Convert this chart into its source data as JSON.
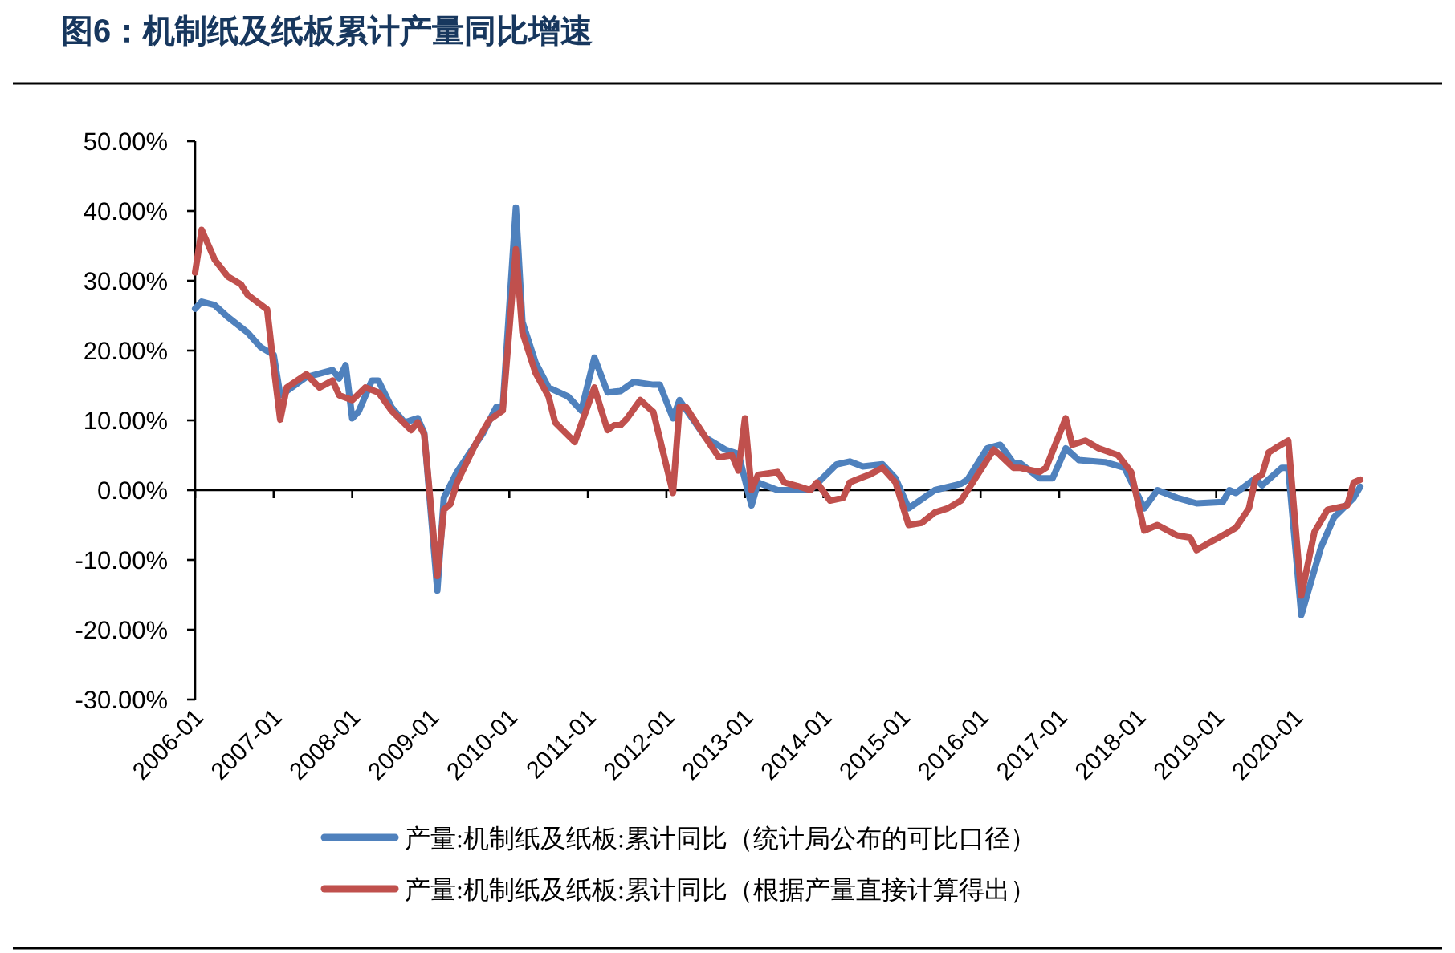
{
  "chart_data": {
    "type": "line",
    "title": "图6：机制纸及纸板累计产量同比增速",
    "xlim": [
      "2006-01",
      "2020-11"
    ],
    "xticks": [
      "2006-01",
      "2007-01",
      "2008-01",
      "2009-01",
      "2010-01",
      "2011-01",
      "2012-01",
      "2013-01",
      "2014-01",
      "2015-01",
      "2016-01",
      "2017-01",
      "2018-01",
      "2019-01",
      "2020-01"
    ],
    "ylim": [
      -30,
      50
    ],
    "yticks": [
      {
        "value": 50,
        "label": "50.00%"
      },
      {
        "value": 40,
        "label": "40.00%"
      },
      {
        "value": 30,
        "label": "30.00%"
      },
      {
        "value": 20,
        "label": "20.00%"
      },
      {
        "value": 10,
        "label": "10.00%"
      },
      {
        "value": 0,
        "label": "0.00%"
      },
      {
        "value": -10,
        "label": "-10.00%"
      },
      {
        "value": -20,
        "label": "-20.00%"
      },
      {
        "value": -30,
        "label": "-30.00%"
      }
    ],
    "legend": "bottom",
    "marker": "none",
    "line_style": "solid",
    "series": [
      {
        "name": "产量:机制纸及纸板:累计同比（统计局公布的可比口径）",
        "color": "#4f81bd",
        "x": [
          "2006-01",
          "2006-02",
          "2006-04",
          "2006-06",
          "2006-09",
          "2006-11",
          "2007-01",
          "2007-02",
          "2007-03",
          "2007-06",
          "2007-10",
          "2007-11",
          "2007-12",
          "2008-01",
          "2008-02",
          "2008-04",
          "2008-05",
          "2008-07",
          "2008-09",
          "2008-11",
          "2008-12",
          "2009-02",
          "2009-03",
          "2009-05",
          "2009-07",
          "2009-09",
          "2009-11",
          "2009-12",
          "2010-02",
          "2010-03",
          "2010-05",
          "2010-07",
          "2010-10",
          "2010-12",
          "2011-02",
          "2011-04",
          "2011-06",
          "2011-08",
          "2011-11",
          "2011-12",
          "2012-02",
          "2012-03",
          "2012-07",
          "2012-10",
          "2012-12",
          "2013-02",
          "2013-03",
          "2013-06",
          "2013-11",
          "2014-03",
          "2014-05",
          "2014-07",
          "2014-10",
          "2014-12",
          "2015-02",
          "2015-06",
          "2015-10",
          "2015-11",
          "2016-02",
          "2016-04",
          "2016-06",
          "2016-07",
          "2016-10",
          "2016-12",
          "2017-02",
          "2017-04",
          "2017-08",
          "2017-11",
          "2018-02",
          "2018-04",
          "2018-07",
          "2018-10",
          "2019-02",
          "2019-03",
          "2019-04",
          "2019-07",
          "2019-08",
          "2019-11",
          "2019-12",
          "2020-02",
          "2020-05",
          "2020-07",
          "2020-10",
          "2020-11"
        ],
        "values": [
          26.0,
          27.0,
          26.5,
          24.8,
          22.6,
          20.5,
          19.4,
          13.6,
          14.2,
          16.2,
          17.2,
          16.0,
          17.9,
          10.3,
          11.3,
          15.7,
          15.7,
          11.9,
          9.7,
          10.3,
          8.2,
          -14.4,
          -1.1,
          2.6,
          5.4,
          8.2,
          11.9,
          11.9,
          40.5,
          24.1,
          18.3,
          14.7,
          13.4,
          11.4,
          19.0,
          14.0,
          14.2,
          15.5,
          15.1,
          15.1,
          10.3,
          12.9,
          7.5,
          5.8,
          5.2,
          -2.2,
          1.1,
          0.0,
          0.0,
          3.7,
          4.1,
          3.4,
          3.7,
          1.7,
          -2.6,
          0.0,
          0.9,
          1.5,
          6.0,
          6.5,
          3.9,
          3.9,
          1.7,
          1.7,
          6.0,
          4.3,
          4.0,
          3.2,
          -2.6,
          0.0,
          -1.1,
          -1.9,
          -1.7,
          0.0,
          -0.4,
          1.7,
          0.7,
          3.2,
          3.2,
          -17.9,
          -8.2,
          -3.9,
          -1.1,
          0.5
        ]
      },
      {
        "name": "产量:机制纸及纸板:累计同比（根据产量直接计算得出）",
        "color": "#c0504d",
        "x": [
          "2006-01",
          "2006-02",
          "2006-04",
          "2006-06",
          "2006-08",
          "2006-09",
          "2006-12",
          "2007-01",
          "2007-02",
          "2007-03",
          "2007-06",
          "2007-08",
          "2007-10",
          "2007-11",
          "2008-01",
          "2008-03",
          "2008-05",
          "2008-07",
          "2008-10",
          "2008-11",
          "2008-12",
          "2009-02",
          "2009-03",
          "2009-04",
          "2009-05",
          "2009-08",
          "2009-10",
          "2009-12",
          "2010-02",
          "2010-03",
          "2010-05",
          "2010-07",
          "2010-08",
          "2010-11",
          "2011-02",
          "2011-04",
          "2011-05",
          "2011-06",
          "2011-07",
          "2011-09",
          "2011-11",
          "2012-02",
          "2012-03",
          "2012-04",
          "2012-07",
          "2012-09",
          "2012-11",
          "2012-12",
          "2013-01",
          "2013-02",
          "2013-03",
          "2013-06",
          "2013-07",
          "2013-09",
          "2013-11",
          "2013-12",
          "2014-02",
          "2014-04",
          "2014-05",
          "2014-06",
          "2014-08",
          "2014-10",
          "2014-12",
          "2015-02",
          "2015-04",
          "2015-06",
          "2015-08",
          "2015-10",
          "2016-03",
          "2016-04",
          "2016-06",
          "2016-07",
          "2016-10",
          "2016-11",
          "2017-02",
          "2017-03",
          "2017-05",
          "2017-07",
          "2017-10",
          "2017-12",
          "2018-02",
          "2018-04",
          "2018-07",
          "2018-09",
          "2018-10",
          "2018-12",
          "2019-02",
          "2019-04",
          "2019-06",
          "2019-07",
          "2019-08",
          "2019-09",
          "2019-10",
          "2019-12",
          "2020-02",
          "2020-04",
          "2020-06",
          "2020-09",
          "2020-10",
          "2020-11"
        ],
        "values": [
          31.2,
          37.3,
          33.0,
          30.6,
          29.5,
          28.0,
          25.9,
          17.7,
          10.1,
          14.7,
          16.6,
          14.7,
          15.7,
          13.6,
          12.9,
          14.7,
          14.0,
          11.4,
          8.6,
          9.7,
          8.0,
          -12.3,
          -2.8,
          -2.0,
          1.1,
          6.9,
          10.1,
          11.4,
          34.5,
          22.6,
          16.8,
          13.4,
          9.7,
          6.9,
          14.7,
          8.6,
          9.3,
          9.3,
          10.3,
          12.9,
          11.2,
          -0.4,
          11.9,
          11.9,
          7.5,
          4.7,
          5.0,
          2.8,
          10.3,
          0.0,
          2.2,
          2.6,
          1.1,
          0.6,
          0.0,
          1.1,
          -1.5,
          -1.1,
          1.1,
          1.5,
          2.2,
          3.2,
          1.1,
          -5.0,
          -4.7,
          -3.2,
          -2.6,
          -1.5,
          5.8,
          5.0,
          3.2,
          3.2,
          2.6,
          3.2,
          10.3,
          6.5,
          7.1,
          6.0,
          5.0,
          2.6,
          -5.8,
          -5.0,
          -6.5,
          -6.8,
          -8.6,
          -7.5,
          -6.5,
          -5.4,
          -2.6,
          1.7,
          2.2,
          5.4,
          6.0,
          7.1,
          -15.1,
          -6.0,
          -2.8,
          -2.2,
          1.1,
          1.5
        ]
      }
    ]
  }
}
